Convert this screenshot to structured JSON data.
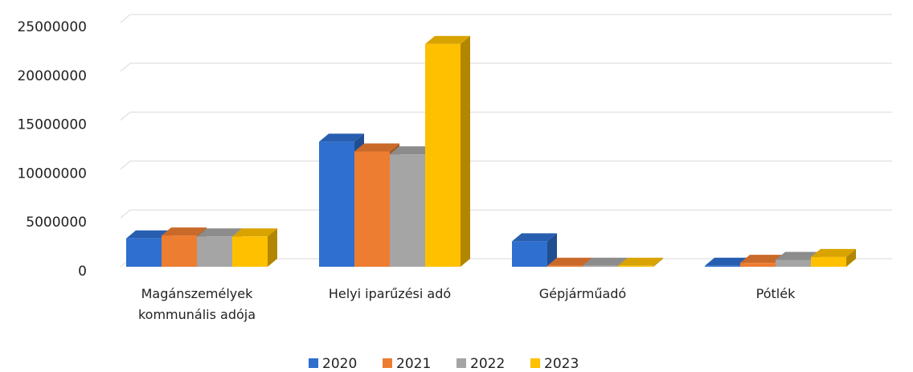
{
  "chart_data": {
    "type": "bar",
    "categories": [
      "Magánszemélyek kommunális adója",
      "Helyi iparűzési adó",
      "Gépjárműadó",
      "Pótlék"
    ],
    "series": [
      {
        "name": "2020",
        "color": "#2f6fcf",
        "values": [
          2900000,
          12800000,
          2600000,
          100000
        ]
      },
      {
        "name": "2021",
        "color": "#ed7d31",
        "values": [
          3200000,
          11800000,
          100000,
          400000
        ]
      },
      {
        "name": "2022",
        "color": "#a5a5a5",
        "values": [
          3100000,
          11500000,
          100000,
          700000
        ]
      },
      {
        "name": "2023",
        "color": "#ffc000",
        "values": [
          3100000,
          22800000,
          100000,
          1000000
        ]
      }
    ],
    "ylim": [
      0,
      25000000
    ],
    "yticks": [
      0,
      5000000,
      10000000,
      15000000,
      20000000,
      25000000
    ],
    "grid": true,
    "legend": "bottom"
  }
}
